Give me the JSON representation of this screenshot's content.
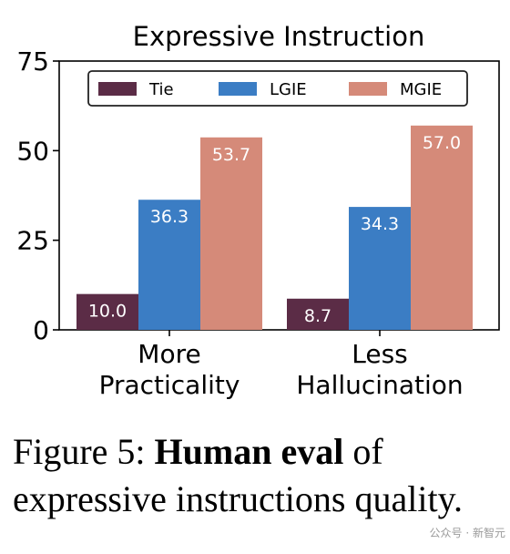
{
  "chart_data": {
    "type": "bar",
    "title": "Expressive Instruction",
    "xlabel": "",
    "ylabel": "",
    "ylim": [
      0,
      75
    ],
    "yticks": [
      0,
      25,
      50,
      75
    ],
    "categories": [
      [
        "More",
        "Practicality"
      ],
      [
        "Less",
        "Hallucination"
      ]
    ],
    "legend_position": "top",
    "series": [
      {
        "name": "Tie",
        "color": "#5b2c46",
        "values": [
          10.0,
          8.7
        ],
        "labels": [
          "10.0",
          "8.7"
        ]
      },
      {
        "name": "LGIE",
        "color": "#3b7dc4",
        "values": [
          36.3,
          34.3
        ],
        "labels": [
          "36.3",
          "34.3"
        ]
      },
      {
        "name": "MGIE",
        "color": "#d58a79",
        "values": [
          53.7,
          57.0
        ],
        "labels": [
          "53.7",
          "57.0"
        ]
      }
    ]
  },
  "caption": {
    "prefix": "Figure 5: ",
    "bold": "Human eval",
    "rest": " of expressive instructions quality."
  },
  "watermark": "公众号 · 新智元"
}
